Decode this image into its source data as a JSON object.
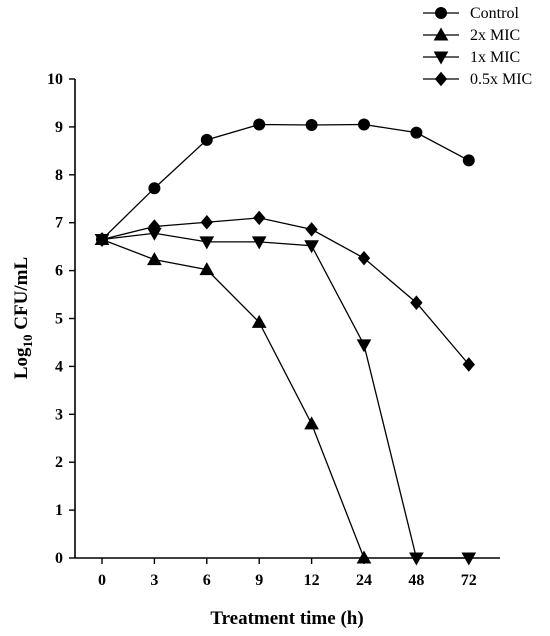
{
  "chart_data": {
    "type": "line",
    "xlabel": "Treatment time (h)",
    "ylabel_main": "Log",
    "ylabel_sub": "10",
    "ylabel_rest": " CFU/mL",
    "categories": [
      "0",
      "3",
      "6",
      "9",
      "12",
      "24",
      "48",
      "72"
    ],
    "ylim": [
      0,
      10
    ],
    "yticks": [
      "0",
      "1",
      "2",
      "3",
      "4",
      "5",
      "6",
      "7",
      "8",
      "9",
      "10"
    ],
    "grid": false,
    "legend_position": "top-right",
    "series": [
      {
        "name": "Control",
        "marker": "circle",
        "values": [
          6.65,
          7.72,
          8.73,
          9.05,
          9.04,
          9.05,
          8.88,
          8.3
        ]
      },
      {
        "name": "2x MIC",
        "marker": "triangle-up",
        "values": [
          6.65,
          6.23,
          6.02,
          4.92,
          2.8,
          0,
          null,
          null
        ]
      },
      {
        "name": "1x MIC",
        "marker": "triangle-down",
        "values": [
          6.65,
          6.78,
          6.6,
          6.6,
          6.52,
          4.45,
          0,
          0
        ]
      },
      {
        "name": "0.5x MIC",
        "marker": "diamond",
        "values": [
          6.65,
          6.92,
          7.01,
          7.1,
          6.86,
          6.26,
          5.33,
          4.04
        ]
      }
    ]
  }
}
